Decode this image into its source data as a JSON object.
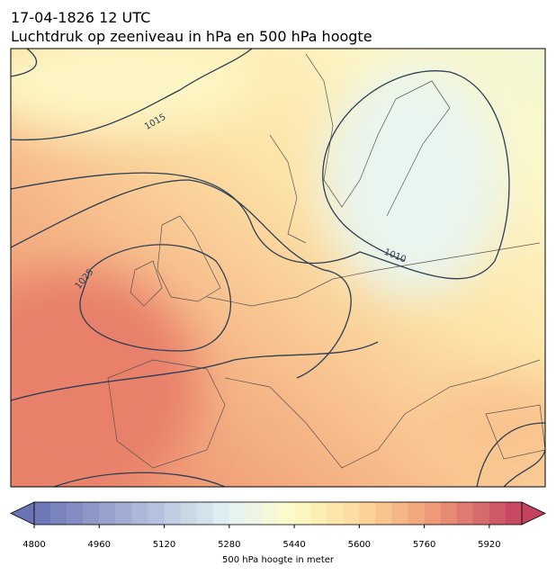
{
  "header": {
    "title": "17-04-1826 12 UTC",
    "subtitle": "Luchtdruk op zeeniveau in hPa en 500 hPa hoogte"
  },
  "map": {
    "isobar_labels": [
      1015,
      1025,
      1010
    ]
  },
  "colorbar": {
    "label": "500 hPa hoogte in meter",
    "lim": [
      4800,
      6000
    ],
    "interval": 40,
    "ticks": [
      4800,
      4960,
      5120,
      5280,
      5440,
      5600,
      5760,
      5920
    ]
  }
}
